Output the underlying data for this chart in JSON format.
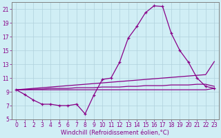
{
  "xlabel": "Windchill (Refroidissement éolien,°C)",
  "background_color": "#d0eef5",
  "grid_color": "#b0d0dc",
  "line_color": "#880088",
  "spine_color": "#808080",
  "hours": [
    0,
    1,
    2,
    3,
    4,
    5,
    6,
    7,
    8,
    9,
    10,
    11,
    12,
    13,
    14,
    15,
    16,
    17,
    18,
    19,
    20,
    21,
    22,
    23
  ],
  "temp": [
    9.3,
    8.6,
    7.8,
    7.2,
    7.2,
    7.0,
    7.0,
    7.2,
    5.8,
    8.5,
    10.8,
    11.0,
    13.3,
    16.8,
    18.5,
    20.5,
    21.5,
    21.4,
    17.5,
    15.0,
    13.3,
    11.0,
    9.8,
    9.5
  ],
  "lin1": [
    9.3,
    9.3,
    9.3,
    9.3,
    9.3,
    9.3,
    9.3,
    9.3,
    9.3,
    9.3,
    9.3,
    9.3,
    9.3,
    9.3,
    9.3,
    9.3,
    9.3,
    9.3,
    9.3,
    9.3,
    9.3,
    9.3,
    9.3,
    9.5
  ],
  "lin2": [
    9.3,
    9.4,
    9.5,
    9.6,
    9.7,
    9.8,
    9.9,
    10.0,
    10.1,
    10.2,
    10.3,
    10.4,
    10.5,
    10.6,
    10.7,
    10.8,
    10.9,
    11.0,
    11.1,
    11.2,
    11.3,
    11.4,
    11.5,
    13.4
  ],
  "lin3": [
    9.3,
    9.3,
    9.4,
    9.4,
    9.5,
    9.5,
    9.5,
    9.6,
    9.6,
    9.6,
    9.7,
    9.7,
    9.7,
    9.8,
    9.8,
    9.9,
    9.9,
    9.9,
    10.0,
    10.0,
    10.0,
    10.1,
    10.1,
    9.8
  ],
  "ylim": [
    5,
    22
  ],
  "xlim_min": -0.5,
  "xlim_max": 23.5,
  "yticks": [
    5,
    7,
    9,
    11,
    13,
    15,
    17,
    19,
    21
  ],
  "xticks": [
    0,
    1,
    2,
    3,
    4,
    5,
    6,
    7,
    8,
    9,
    10,
    11,
    12,
    13,
    14,
    15,
    16,
    17,
    18,
    19,
    20,
    21,
    22,
    23
  ],
  "xlabel_fontsize": 6,
  "tick_fontsize": 5.5,
  "linewidth": 0.9,
  "marker": "+",
  "markersize": 3
}
